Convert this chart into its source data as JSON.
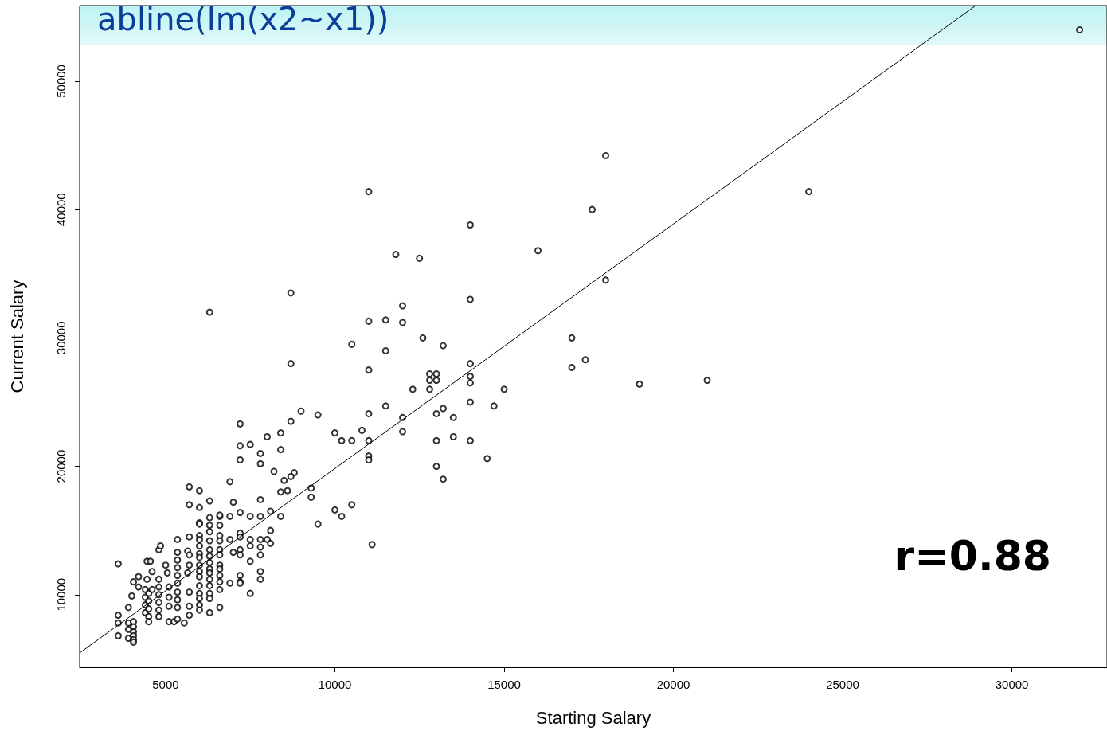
{
  "chart_data": {
    "type": "scatter",
    "title": "abline(lm(x2~x1))",
    "xlabel": "Starting Salary",
    "ylabel": "Current Salary",
    "annotations": [
      "r=0.88"
    ],
    "xlim": [
      2460,
      32810
    ],
    "xticks": [
      5000,
      10000,
      15000,
      20000,
      25000,
      30000
    ],
    "ylim": [
      4340,
      55890
    ],
    "yticks": [
      10000,
      20000,
      30000,
      40000,
      50000
    ],
    "grid": false,
    "series": [
      {
        "marker": "circle",
        "color": "#000000",
        "x": [
          32000,
          18000,
          24000,
          11000,
          17600,
          14000,
          11800,
          12500,
          16000,
          18000,
          8700,
          6300,
          14000,
          12000,
          11000,
          11500,
          12000,
          12600,
          17000,
          10500,
          13200,
          11500,
          17400,
          14000,
          8700,
          17000,
          11000,
          12800,
          13000,
          12800,
          13000,
          14000,
          14000,
          19000,
          21000,
          15000,
          12300,
          12800,
          14000,
          14700,
          11500,
          13200,
          9000,
          9500,
          13000,
          11000,
          13500,
          12000,
          7200,
          8700,
          10000,
          10800,
          12000,
          8000,
          8400,
          10500,
          10200,
          11000,
          13000,
          13500,
          14000,
          7200,
          7500,
          8400,
          7800,
          11000,
          11000,
          7200,
          7800,
          14500,
          13000,
          8200,
          8800,
          8700,
          13200,
          8500,
          6900,
          5700,
          6000,
          9300,
          8400,
          8600,
          6300,
          7000,
          7800,
          9300,
          5700,
          6000,
          10500,
          10000,
          8100,
          10200,
          8400,
          7800,
          7500,
          6900,
          6600,
          6300,
          7200,
          9500,
          6000,
          8100,
          11100,
          3600,
          3600,
          3600,
          3600,
          3900,
          3900,
          3900,
          3900,
          4050,
          4050,
          4050,
          4050,
          4050,
          4050,
          4000,
          4050,
          4200,
          4200,
          4400,
          4400,
          4400,
          4400,
          4500,
          4500,
          4500,
          4500,
          4500,
          4450,
          4550,
          4450,
          4600,
          4600,
          4800,
          4850,
          4800,
          4800,
          4800,
          4800,
          4800,
          4800,
          5000,
          5050,
          5100,
          5100,
          5100,
          5100,
          5250,
          5350,
          5350,
          5350,
          5350,
          5350,
          5350,
          5350,
          5350,
          5350,
          5350,
          5550,
          5650,
          5700,
          5700,
          5650,
          5700,
          5700,
          5700,
          5700,
          6000,
          6000,
          6000,
          6000,
          6000,
          6000,
          6000,
          6000,
          6000,
          6000,
          6000,
          6000,
          6000,
          6000,
          6300,
          6300,
          6300,
          6300,
          6300,
          6300,
          6300,
          6300,
          6300,
          6300,
          6300,
          6300,
          6300,
          6600,
          6600,
          6600,
          6600,
          6600,
          6600,
          6600,
          6600,
          6600,
          6600,
          6600,
          6600,
          6900,
          6900,
          7000,
          7200,
          7200,
          7200,
          7200,
          7200,
          7200,
          7200,
          7500,
          7500,
          7500,
          7500,
          7800,
          7800,
          7800,
          7800,
          7800,
          8000,
          8100
        ],
        "values": [
          54000,
          44200,
          41400,
          41400,
          40000,
          38800,
          36500,
          36200,
          36800,
          34500,
          33500,
          32000,
          33000,
          32500,
          31300,
          31400,
          31200,
          30000,
          30000,
          29500,
          29400,
          29000,
          28300,
          28000,
          28000,
          27700,
          27500,
          27200,
          27200,
          26700,
          26700,
          27000,
          26500,
          26400,
          26700,
          26000,
          26000,
          26000,
          25000,
          24700,
          24700,
          24500,
          24300,
          24000,
          24100,
          24100,
          23800,
          23800,
          23300,
          23500,
          22600,
          22800,
          22700,
          22300,
          22600,
          22000,
          22000,
          22000,
          22000,
          22300,
          22000,
          21600,
          21700,
          21300,
          21000,
          20800,
          20500,
          20500,
          20200,
          20600,
          20000,
          19600,
          19500,
          19200,
          19000,
          18900,
          18800,
          18400,
          18100,
          18300,
          18000,
          18100,
          17300,
          17200,
          17400,
          17600,
          17000,
          16800,
          17000,
          16600,
          16500,
          16100,
          16100,
          16100,
          16100,
          16100,
          16100,
          16000,
          16400,
          15500,
          15600,
          15000,
          13900,
          12400,
          8400,
          7800,
          6800,
          9000,
          7800,
          7300,
          6600,
          7900,
          7500,
          7100,
          6800,
          6500,
          6300,
          9900,
          11000,
          11400,
          10600,
          10400,
          9800,
          9200,
          8600,
          10100,
          9500,
          8900,
          8300,
          7900,
          12600,
          12600,
          11200,
          11800,
          10400,
          13500,
          13800,
          11200,
          10600,
          10000,
          9400,
          8800,
          8300,
          12300,
          11700,
          10600,
          9800,
          9100,
          7900,
          7900,
          14300,
          13300,
          12700,
          12100,
          11500,
          10900,
          10200,
          9600,
          9000,
          8100,
          7800,
          13400,
          13100,
          12300,
          11700,
          10200,
          9100,
          8400,
          14500,
          15500,
          14600,
          14300,
          13800,
          13200,
          12900,
          12300,
          11800,
          11400,
          10700,
          10100,
          9700,
          9200,
          8800,
          15400,
          14900,
          14200,
          13500,
          13000,
          12500,
          12000,
          11700,
          11200,
          10700,
          10100,
          9700,
          8600,
          16200,
          15400,
          14600,
          14200,
          13500,
          13100,
          12300,
          12000,
          11500,
          11000,
          10400,
          9000,
          14300,
          10900,
          13300,
          14800,
          14500,
          13500,
          13100,
          11500,
          11000,
          10900,
          14300,
          13800,
          12600,
          10100,
          14300,
          13700,
          13100,
          11800,
          11200,
          14300,
          14000
        ]
      },
      {
        "type": "line",
        "marker": "none",
        "line_style": "solid",
        "color": "#000000",
        "x": [
          2460,
          28930
        ],
        "values": [
          5460,
          55890
        ]
      }
    ]
  }
}
